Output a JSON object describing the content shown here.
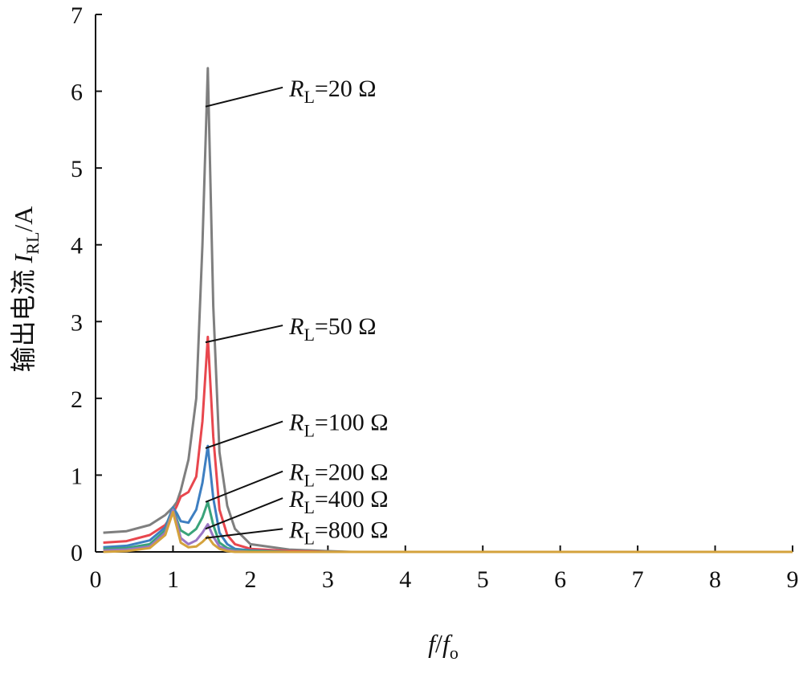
{
  "chart_data": {
    "type": "line",
    "xlabel": {
      "main": "f",
      "sep": "/",
      "main2": "f",
      "sub": "o"
    },
    "ylabel": {
      "prefix": "输出电流 ",
      "italic": "I",
      "sub": "RL",
      "suffix": "/A"
    },
    "xlim": [
      0,
      9
    ],
    "ylim": [
      0,
      7
    ],
    "xticks": [
      "0",
      "1",
      "2",
      "3",
      "4",
      "5",
      "6",
      "7",
      "8",
      "9"
    ],
    "yticks": [
      "0",
      "1",
      "2",
      "3",
      "4",
      "5",
      "6",
      "7"
    ],
    "grid": false,
    "x": [
      0.1,
      0.4,
      0.7,
      0.9,
      1.0,
      1.05,
      1.1,
      1.2,
      1.3,
      1.38,
      1.45,
      1.52,
      1.6,
      1.7,
      1.8,
      2.0,
      2.5,
      3.0,
      3.3,
      5.0,
      9.0
    ],
    "series": [
      {
        "label": "R",
        "sub": "L",
        "value": "=20 Ω",
        "color": "#7f7f7f",
        "values": [
          0.25,
          0.27,
          0.35,
          0.48,
          0.58,
          0.65,
          0.8,
          1.2,
          2.0,
          4.0,
          6.3,
          3.2,
          1.3,
          0.6,
          0.3,
          0.1,
          0.03,
          0.01,
          0.0,
          0.0,
          0.0
        ]
      },
      {
        "label": "R",
        "sub": "L",
        "value": "=50 Ω",
        "color": "#e8474e",
        "values": [
          0.12,
          0.14,
          0.22,
          0.35,
          0.5,
          0.6,
          0.72,
          0.78,
          0.98,
          1.7,
          2.8,
          1.5,
          0.55,
          0.22,
          0.1,
          0.04,
          0.01,
          0.0,
          0.0,
          0.0,
          0.0
        ]
      },
      {
        "label": "R",
        "sub": "L",
        "value": "=100 Ω",
        "color": "#3e7fc1",
        "values": [
          0.06,
          0.08,
          0.15,
          0.32,
          0.58,
          0.5,
          0.4,
          0.38,
          0.55,
          0.9,
          1.38,
          0.7,
          0.25,
          0.1,
          0.04,
          0.02,
          0.0,
          0.0,
          0.0,
          0.0,
          0.0
        ]
      },
      {
        "label": "R",
        "sub": "L",
        "value": "=200 Ω",
        "color": "#3aa37a",
        "values": [
          0.04,
          0.05,
          0.1,
          0.28,
          0.56,
          0.42,
          0.28,
          0.22,
          0.3,
          0.45,
          0.65,
          0.35,
          0.12,
          0.05,
          0.02,
          0.01,
          0.0,
          0.0,
          0.0,
          0.0,
          0.0
        ]
      },
      {
        "label": "R",
        "sub": "L",
        "value": "=400 Ω",
        "color": "#9a76c4",
        "values": [
          0.02,
          0.03,
          0.07,
          0.25,
          0.55,
          0.38,
          0.18,
          0.1,
          0.15,
          0.25,
          0.36,
          0.2,
          0.07,
          0.03,
          0.01,
          0.0,
          0.0,
          0.0,
          0.0,
          0.0,
          0.0
        ]
      },
      {
        "label": "R",
        "sub": "L",
        "value": "=800 Ω",
        "color": "#d4a23c",
        "values": [
          0.0,
          0.01,
          0.05,
          0.22,
          0.52,
          0.32,
          0.12,
          0.06,
          0.07,
          0.13,
          0.2,
          0.1,
          0.04,
          0.01,
          0.0,
          0.0,
          0.0,
          0.0,
          0.0,
          0.0,
          0.0
        ]
      }
    ],
    "annotations": [
      {
        "series": 0,
        "point": [
          1.42,
          5.8
        ],
        "text_at": [
          2.5,
          6.05
        ]
      },
      {
        "series": 1,
        "point": [
          1.42,
          2.73
        ],
        "text_at": [
          2.5,
          2.95
        ]
      },
      {
        "series": 2,
        "point": [
          1.42,
          1.35
        ],
        "text_at": [
          2.5,
          1.7
        ]
      },
      {
        "series": 3,
        "point": [
          1.42,
          0.65
        ],
        "text_at": [
          2.5,
          1.05
        ]
      },
      {
        "series": 4,
        "point": [
          1.42,
          0.3
        ],
        "text_at": [
          2.5,
          0.7
        ]
      },
      {
        "series": 5,
        "point": [
          1.42,
          0.18
        ],
        "text_at": [
          2.5,
          0.3
        ]
      }
    ]
  }
}
